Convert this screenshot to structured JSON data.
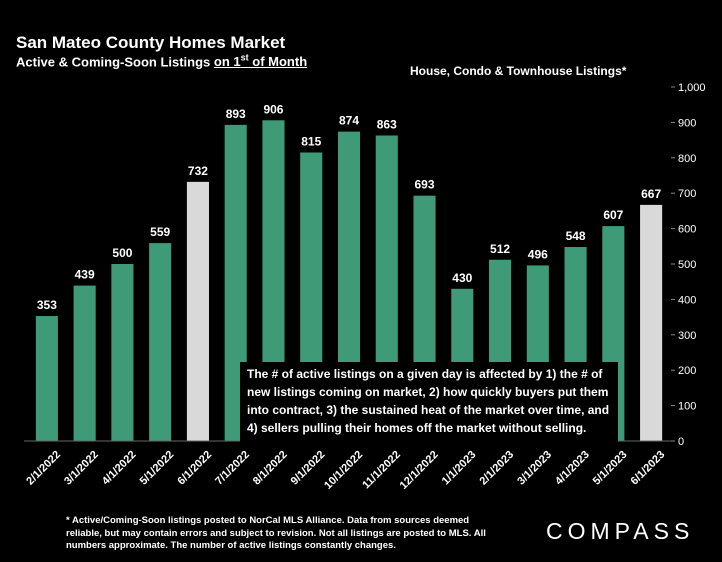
{
  "header": {
    "title": "San Mateo County Homes Market",
    "subtitle_prefix": "Active & Coming-Soon Listings ",
    "subtitle_underlined": "on 1",
    "subtitle_sup": "st",
    "subtitle_suffix": " of Month",
    "series_label": "House, Condo & Townhouse Listings*"
  },
  "annotation": "The # of active listings on a given day is affected by 1) the # of new listings coming on market, 2) how quickly buyers put them into contract, 3) the sustained heat of the market over time, and 4) sellers pulling their homes off the market without selling.",
  "footnote": "* Active/Coming-Soon listings posted to NorCal MLS Alliance.  Data from sources deemed reliable, but may contain errors and subject to revision.  Not all listings are posted to MLS. All numbers approximate. The number of active listings constantly changes.",
  "brand": "COMPASS",
  "colors": {
    "bar": "#3f9a78",
    "highlight": "#d9d9d9",
    "background": "#000000",
    "grid": "#2a2a2a"
  },
  "chart_data": {
    "type": "bar",
    "categories": [
      "2/1/2022",
      "3/1/2022",
      "4/1/2022",
      "5/1/2022",
      "6/1/2022",
      "7/1/2022",
      "8/1/2022",
      "9/1/2022",
      "10/1/2022",
      "11/1/2022",
      "12/1/2022",
      "1/1/2023",
      "2/1/2023",
      "3/1/2023",
      "4/1/2023",
      "5/1/2023",
      "6/1/2023"
    ],
    "values": [
      353,
      439,
      500,
      559,
      732,
      893,
      906,
      815,
      874,
      863,
      693,
      430,
      512,
      496,
      548,
      607,
      667
    ],
    "highlighted": [
      "6/1/2022",
      "6/1/2023"
    ],
    "ylim": [
      0,
      1000
    ],
    "yticks": [
      "0",
      "100",
      "200",
      "300",
      "400",
      "500",
      "600",
      "700",
      "800",
      "900",
      "1,000"
    ],
    "y_axis_position": "right",
    "grid": false,
    "legend": "none"
  }
}
